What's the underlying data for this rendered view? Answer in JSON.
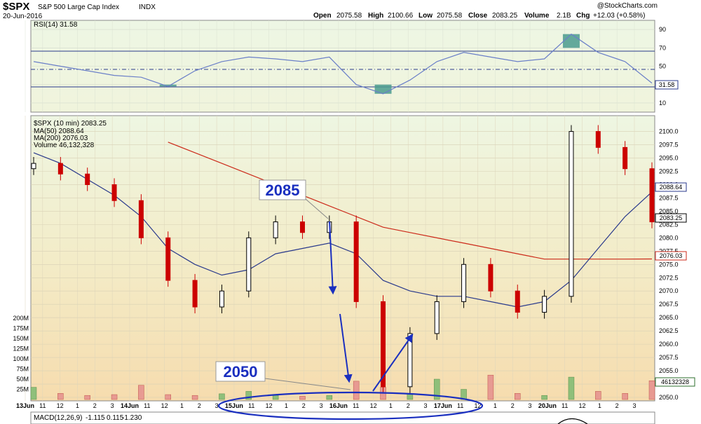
{
  "header": {
    "symbol": "$SPX",
    "name": "S&P 500 Large Cap Index",
    "exchange": "INDX",
    "date": "20-Jun-2016",
    "open_label": "Open",
    "open": "2075.58",
    "high_label": "High",
    "high": "2100.66",
    "low_label": "Low",
    "low": "2075.58",
    "close_label": "Close",
    "close": "2083.25",
    "volume_label": "Volume",
    "volume": "2.1B",
    "chg_label": "Chg",
    "chg": "+12.03 (+0.58%)",
    "brand": "@StockCharts.com"
  },
  "rsi_panel": {
    "label": "RSI(14) 31.58",
    "ticks": [
      "90",
      "70",
      "50",
      "30",
      "10"
    ],
    "last": "31.58"
  },
  "price_panel": {
    "legend": [
      "$SPX (10 min) 2083.25",
      "MA(50) 2088.64",
      "MA(200) 2076.03",
      "Volume 46,132,328"
    ],
    "price_ticks": [
      "2100.0",
      "2097.5",
      "2095.0",
      "2092.5",
      "2090.0",
      "2087.5",
      "2085.0",
      "2082.5",
      "2080.0",
      "2077.5",
      "2075.0",
      "2072.5",
      "2070.0",
      "2067.5",
      "2065.0",
      "2062.5",
      "2060.0",
      "2057.5",
      "2055.0",
      "2052.5",
      "2050.0"
    ],
    "volume_ticks": [
      "200M",
      "175M",
      "150M",
      "125M",
      "100M",
      "75M",
      "50M",
      "25M"
    ],
    "ma50_box": "2088.64",
    "close_box": "2083.25",
    "ma200_box": "2076.03",
    "volume_box": "46132328"
  },
  "x_axis": {
    "labels": [
      "13Jun",
      "11",
      "12",
      "1",
      "2",
      "3",
      "14Jun",
      "11",
      "12",
      "1",
      "2",
      "3",
      "15Jun",
      "11",
      "12",
      "1",
      "2",
      "3",
      "16Jun",
      "11",
      "12",
      "1",
      "2",
      "3",
      "17Jun",
      "11",
      "12",
      "1",
      "2",
      "3",
      "20Jun",
      "11",
      "12",
      "1",
      "2",
      "3"
    ]
  },
  "macd_panel": {
    "label": "MACD(12,26,9)",
    "macd": "-1.115",
    "signal": "0.115",
    "hist": "-1.230"
  },
  "annotations": {
    "callout_high": "2085",
    "callout_low": "2050"
  },
  "colors": {
    "up": "#000000",
    "down": "#cc0000",
    "ma50": "#2a3a8c",
    "ma200": "#cc2a1a",
    "rsi": "#6a7fc8",
    "annotation": "#1a2fbf"
  },
  "chart_data": {
    "type": "line",
    "title": "$SPX S&P 500 Large Cap Index INDX",
    "xlabel": "",
    "ylabel": "",
    "ylim": [
      2050,
      2101
    ],
    "x": [
      "13Jun 09:30",
      "13Jun 11:00",
      "13Jun 13:00",
      "13Jun 15:00",
      "14Jun 09:30",
      "14Jun 11:00",
      "14Jun 13:00",
      "14Jun 15:00",
      "15Jun 09:30",
      "15Jun 11:00",
      "15Jun 13:00",
      "15Jun 15:00",
      "16Jun 09:30",
      "16Jun 11:00",
      "16Jun 13:00",
      "16Jun 15:00",
      "17Jun 09:30",
      "17Jun 11:00",
      "17Jun 13:00",
      "17Jun 15:00",
      "20Jun 09:30",
      "20Jun 11:00",
      "20Jun 13:00",
      "20Jun 15:00"
    ],
    "series": [
      {
        "name": "$SPX (10 min)",
        "values": [
          2094,
          2092,
          2090,
          2087,
          2080,
          2072,
          2067,
          2070,
          2080,
          2083,
          2081,
          2083,
          2068,
          2052,
          2062,
          2068,
          2075,
          2070,
          2066,
          2069,
          2100,
          2097,
          2093,
          2083
        ]
      },
      {
        "name": "MA(50)",
        "values": [
          2096,
          2094,
          2091,
          2088,
          2084,
          2078,
          2075,
          2073,
          2074,
          2077,
          2078,
          2079,
          2077,
          2072,
          2070,
          2069,
          2069,
          2068,
          2067,
          2068,
          2072,
          2078,
          2084,
          2088.64
        ]
      },
      {
        "name": "MA(200)",
        "values": [
          null,
          null,
          null,
          null,
          null,
          2098,
          2096,
          2094,
          2092,
          2090,
          2088,
          2086,
          2084,
          2082,
          2081,
          2080,
          2079,
          2078,
          2077,
          2076,
          2076,
          2076,
          2076,
          2076.03
        ]
      },
      {
        "name": "RSI(14)",
        "values": [
          55,
          50,
          45,
          40,
          38,
          28,
          45,
          55,
          60,
          58,
          55,
          60,
          30,
          20,
          35,
          55,
          65,
          60,
          55,
          58,
          85,
          65,
          55,
          31.58
        ]
      }
    ],
    "volume_millions": [
      30,
      15,
      10,
      12,
      35,
      12,
      10,
      14,
      20,
      10,
      8,
      10,
      45,
      30,
      15,
      50,
      25,
      60,
      15,
      10,
      55,
      20,
      15,
      46.13
    ],
    "annotations": [
      "2085",
      "2050"
    ]
  }
}
